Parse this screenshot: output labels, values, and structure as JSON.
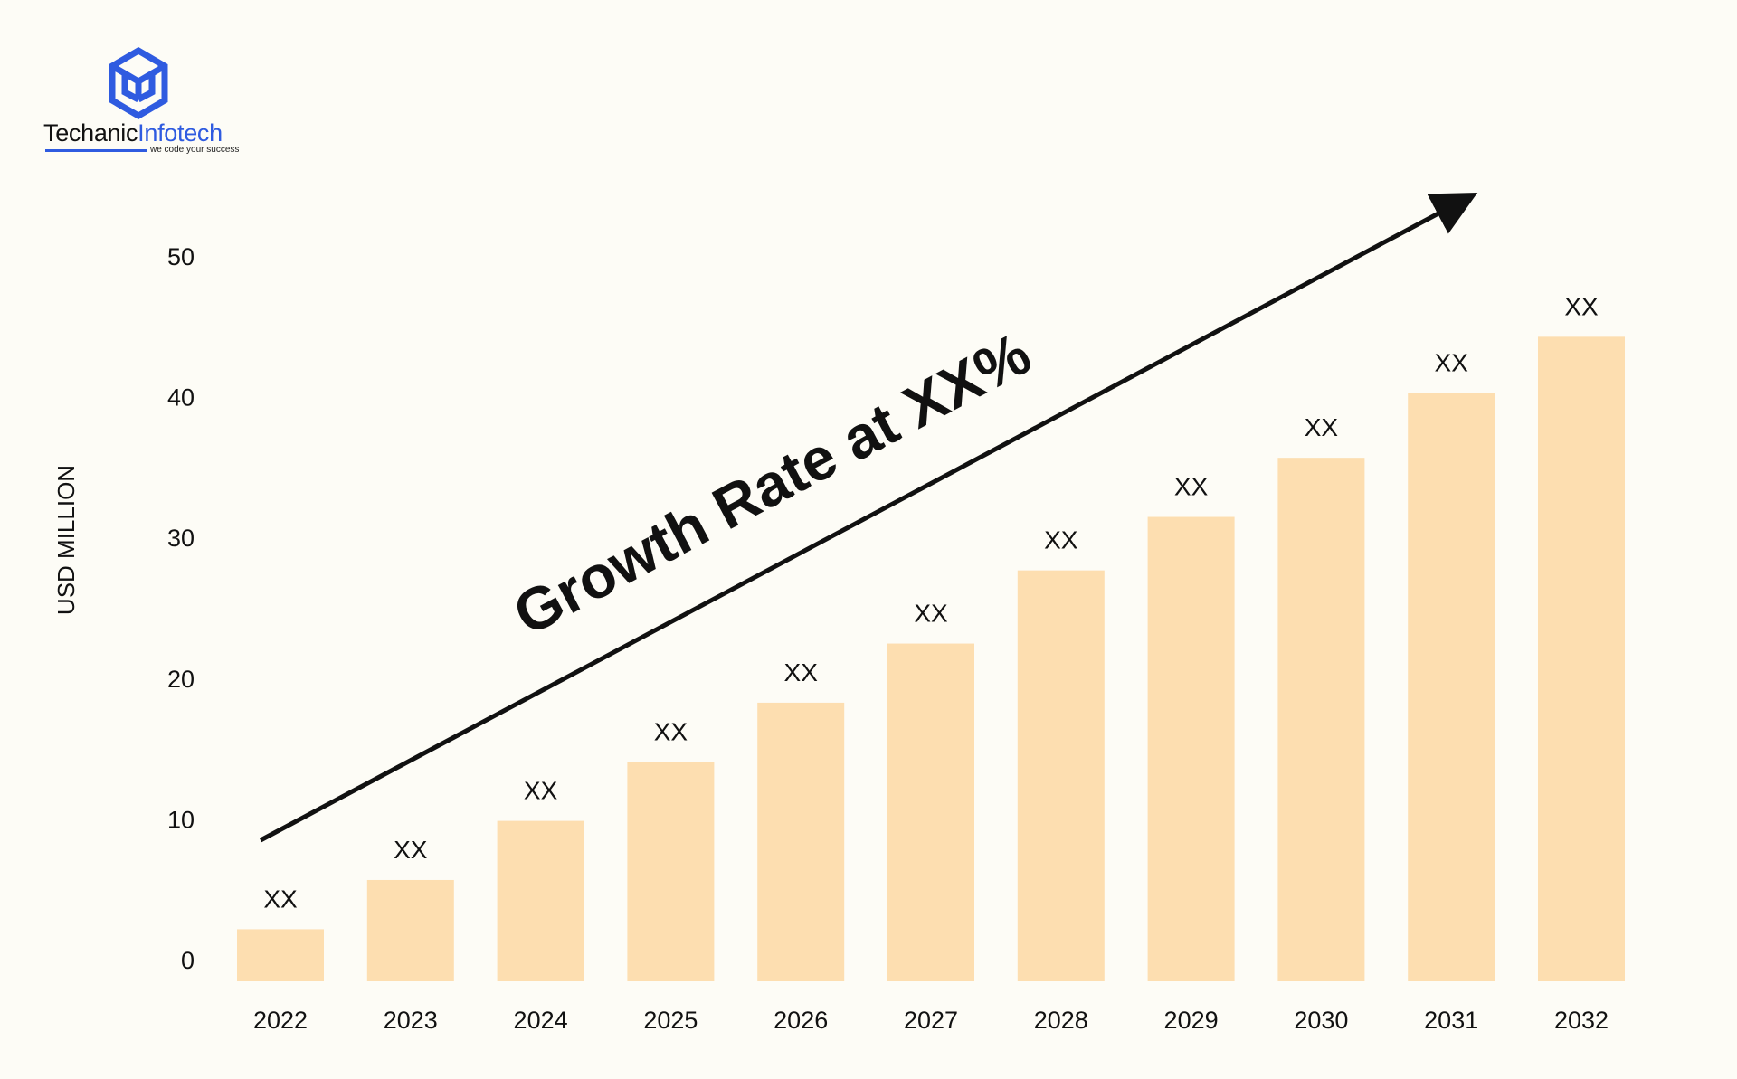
{
  "brand": {
    "name_part1": "Techanic",
    "name_part2": "Infotech",
    "tagline": "we code your success",
    "accent_color": "#2f5be0",
    "logo_icon": "cube-logo-icon"
  },
  "chart_data": {
    "type": "bar",
    "categories": [
      "2022",
      "2023",
      "2024",
      "2025",
      "2026",
      "2027",
      "2028",
      "2029",
      "2030",
      "2031",
      "2032"
    ],
    "values": [
      3.7,
      7.2,
      11.4,
      15.6,
      19.8,
      24.0,
      29.2,
      33.0,
      37.2,
      41.8,
      45.8
    ],
    "data_labels": [
      "XX",
      "XX",
      "XX",
      "XX",
      "XX",
      "XX",
      "XX",
      "XX",
      "XX",
      "XX",
      "XX"
    ],
    "ylabel": "USD MILLION",
    "yticks": [
      0,
      10,
      20,
      30,
      40,
      50
    ],
    "ylim": [
      0,
      50
    ],
    "annotation": "Growth Rate at XX%",
    "bar_color": "#fddeb0",
    "grid": false,
    "legend": "none"
  }
}
